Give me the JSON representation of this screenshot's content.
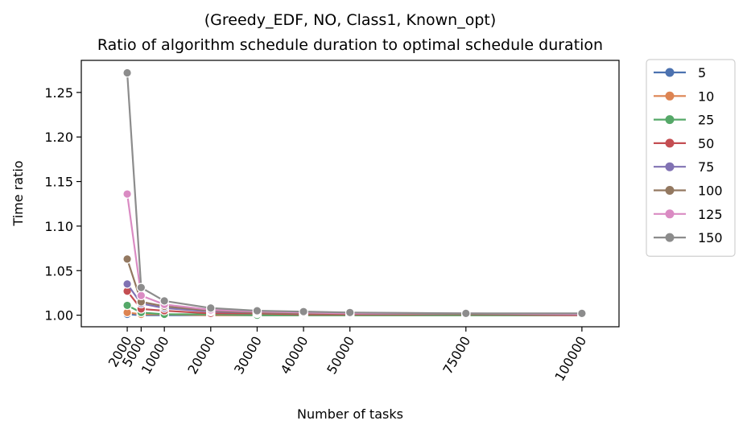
{
  "chart_data": {
    "type": "line",
    "title": "(Greedy_EDF, NO, Class1, Known_opt)",
    "subtitle": "Ratio of algorithm schedule duration to optimal schedule duration",
    "xlabel": "Number of tasks",
    "ylabel": "Time ratio",
    "x": [
      2000,
      5000,
      10000,
      20000,
      30000,
      40000,
      50000,
      75000,
      100000
    ],
    "x_tick_labels": [
      "2000",
      "5000",
      "10000",
      "20000",
      "30000",
      "40000",
      "50000",
      "75000",
      "100000"
    ],
    "y_ticks": [
      1.0,
      1.05,
      1.1,
      1.15,
      1.2,
      1.25
    ],
    "y_tick_labels": [
      "1.00",
      "1.05",
      "1.10",
      "1.15",
      "1.20",
      "1.25"
    ],
    "xlim": [
      -7900,
      108000
    ],
    "ylim": [
      0.987,
      1.286
    ],
    "grid": false,
    "legend_placement": "outside-right",
    "series": [
      {
        "name": "5",
        "color": "#4c72b0",
        "values": [
          1.001,
          1.0,
          1.0,
          1.0,
          1.0,
          1.0,
          1.0,
          1.0,
          1.0
        ]
      },
      {
        "name": "10",
        "color": "#dd8452",
        "values": [
          1.003,
          1.001,
          1.001,
          1.0,
          1.0,
          1.0,
          1.0,
          1.0,
          1.0
        ]
      },
      {
        "name": "25",
        "color": "#55a868",
        "values": [
          1.011,
          1.003,
          1.001,
          1.001,
          1.0,
          1.0,
          1.0,
          1.0,
          1.0
        ]
      },
      {
        "name": "50",
        "color": "#c44e52",
        "values": [
          1.027,
          1.007,
          1.005,
          1.002,
          1.002,
          1.001,
          1.001,
          1.001,
          1.0
        ]
      },
      {
        "name": "75",
        "color": "#8172b3",
        "values": [
          1.035,
          1.013,
          1.008,
          1.004,
          1.003,
          1.002,
          1.002,
          1.001,
          1.001
        ]
      },
      {
        "name": "100",
        "color": "#937860",
        "values": [
          1.063,
          1.015,
          1.01,
          1.005,
          1.003,
          1.002,
          1.002,
          1.001,
          1.001
        ]
      },
      {
        "name": "125",
        "color": "#da8bc3",
        "values": [
          1.136,
          1.022,
          1.012,
          1.006,
          1.004,
          1.003,
          1.002,
          1.002,
          1.001
        ]
      },
      {
        "name": "150",
        "color": "#8c8c8c",
        "values": [
          1.272,
          1.031,
          1.016,
          1.008,
          1.005,
          1.004,
          1.003,
          1.002,
          1.002
        ]
      }
    ]
  }
}
